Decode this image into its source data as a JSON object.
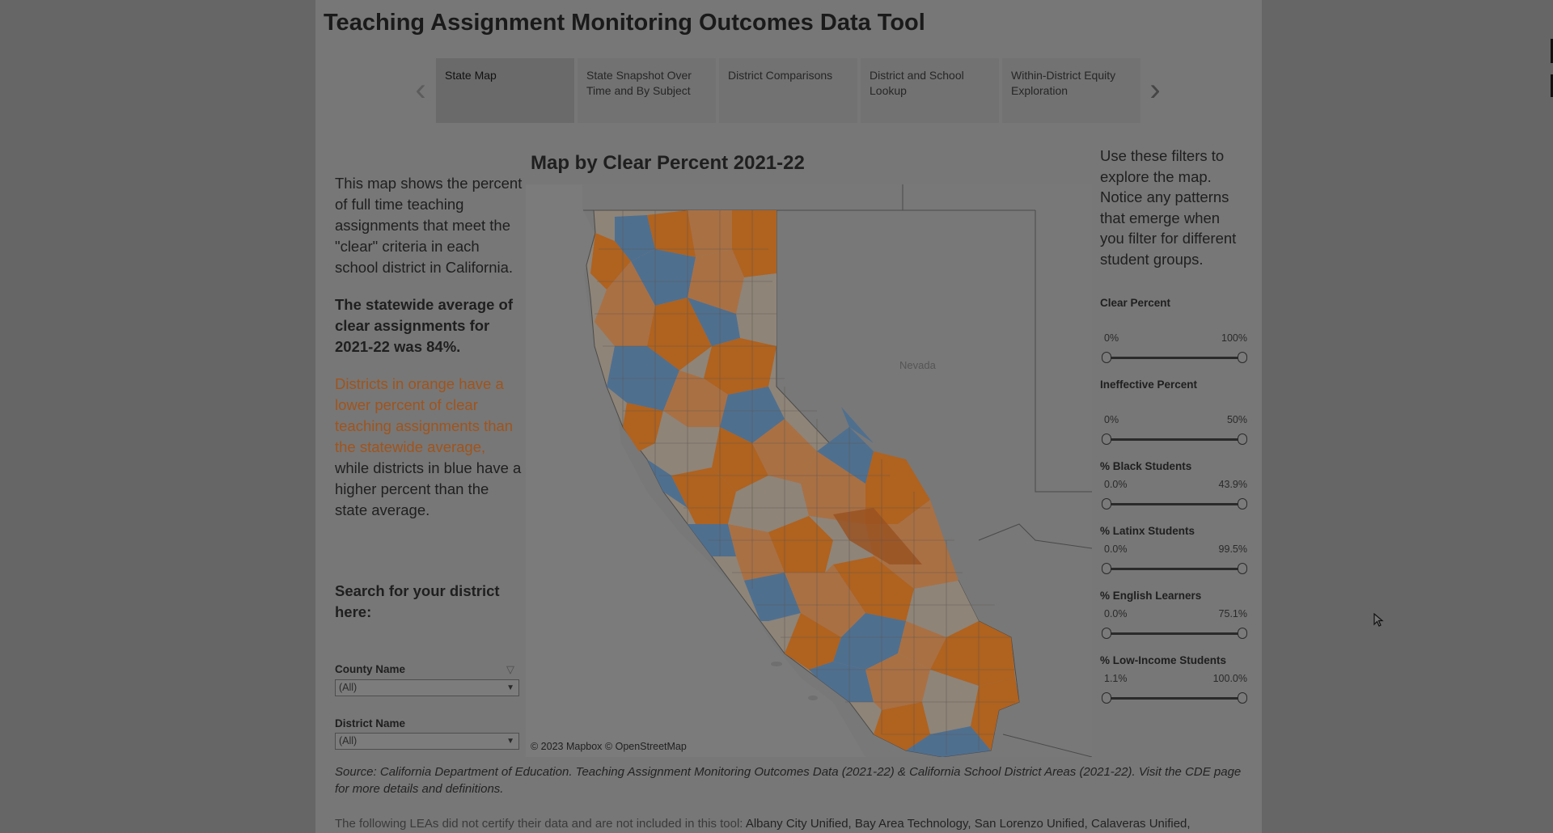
{
  "title": "Teaching Assignment Monitoring Outcomes Data Tool",
  "tabs": [
    {
      "label": "State Map",
      "active": true
    },
    {
      "label": "State Snapshot Over Time and By Subject",
      "active": false
    },
    {
      "label": "District Comparisons",
      "active": false
    },
    {
      "label": "District and  School Lookup",
      "active": false
    },
    {
      "label": "Within-District Equity Exploration",
      "active": false
    }
  ],
  "nav": {
    "prev_icon": "chevron-left-icon",
    "next_icon": "chevron-right-icon",
    "prev_glyph": "‹",
    "next_glyph": "›"
  },
  "left": {
    "intro": "This map shows the percent of full time teaching assignments that meet the \"clear\" criteria in each school district in California.",
    "statewide": "The statewide average of clear assignments for 2021-22 was 84%.",
    "legend_orange": "Districts in orange have a lower percent of clear teaching assignments than the statewide average,",
    "legend_blue": " while districts in blue have a higher percent than the state average.",
    "search_heading": "Search for your district here:",
    "county": {
      "label": "County Name",
      "value": "(All)"
    },
    "district": {
      "label": "District Name",
      "value": "(All)"
    }
  },
  "map": {
    "title": "Map by Clear Percent 2021-22",
    "credit": "© 2023 Mapbox  © OpenStreetMap",
    "label_nevada": "Nevada",
    "colors": {
      "below_average": "#b0621f",
      "above_average": "#4f6f8f",
      "near_average": "#8e8478",
      "background": "#7a7a7a"
    }
  },
  "filters": {
    "intro": "Use these filters to explore the map. Notice any patterns that emerge when you filter for different student groups.",
    "sliders": [
      {
        "title": "Clear Percent",
        "min": "0%",
        "max": "100%"
      },
      {
        "title": "Ineffective Percent",
        "min": "0%",
        "max": "50%"
      },
      {
        "title": "% Black Students",
        "min": "0.0%",
        "max": "43.9%"
      },
      {
        "title": "% Latinx Students",
        "min": "0.0%",
        "max": "99.5%"
      },
      {
        "title": "% English Learners",
        "min": "0.0%",
        "max": "75.1%"
      },
      {
        "title": "% Low-Income Students",
        "min": "1.1%",
        "max": "100.0%"
      }
    ]
  },
  "footer": {
    "source": "Source: California Department of Education. Teaching Assignment Monitoring Outcomes Data (2021-22) & California School District Areas (2021-22). Visit the CDE page for more details and definitions.",
    "uncertified_prefix": "The following LEAs did not certify their data and are not included in this tool: ",
    "uncertified_list": "Albany City Unified, Bay Area Technology, San Lorenzo Unified, Calaveras Unified,"
  }
}
